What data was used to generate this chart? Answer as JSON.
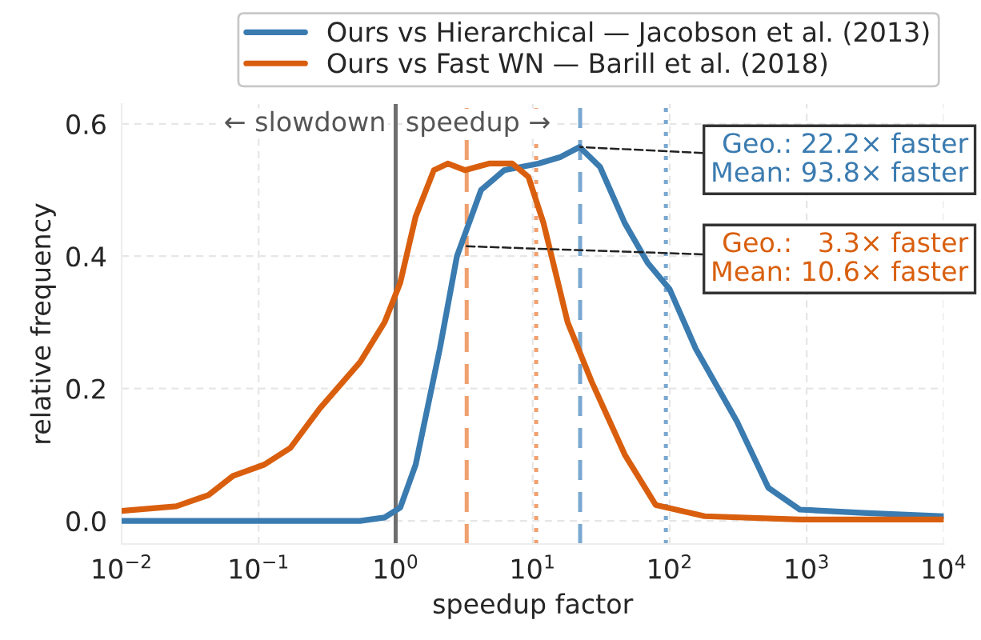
{
  "chart_data": {
    "type": "line",
    "xlabel": "speedup factor",
    "ylabel": "relative frequency",
    "log": "x",
    "grid": true,
    "legend": "top",
    "line_style": "solid",
    "marker": "none",
    "xlim": [
      0.01,
      10000
    ],
    "ylim": [
      -0.035,
      0.63
    ],
    "xticks": [
      {
        "value": 0.01,
        "label": "10$^{−2}$"
      },
      {
        "value": 0.1,
        "label": "10$^{−1}$"
      },
      {
        "value": 1,
        "label": "10$^{0}$"
      },
      {
        "value": 10,
        "label": "10$^{1}$"
      },
      {
        "value": 100,
        "label": "10$^{2}$"
      },
      {
        "value": 1000,
        "label": "10$^{3}$"
      },
      {
        "value": 10000,
        "label": "10$^{4}$"
      }
    ],
    "yticks": [
      {
        "value": 0,
        "label": "0.0"
      },
      0.2,
      0.4,
      0.6
    ],
    "series": [
      {
        "name": "Ours vs Hierarchical — Jacobson et al. (2013)",
        "color": "#3a7bb0",
        "x": [
          0.01,
          0.55,
          0.83,
          1.08,
          1.4,
          2.1,
          2.8,
          4.2,
          6.2,
          11,
          16,
          22,
          31,
          47,
          69,
          100,
          155,
          310,
          525,
          890,
          2600,
          10000
        ],
        "values": [
          0,
          0,
          0.005,
          0.02,
          0.085,
          0.26,
          0.4,
          0.5,
          0.53,
          0.54,
          0.55,
          0.565,
          0.535,
          0.45,
          0.39,
          0.35,
          0.26,
          0.15,
          0.05,
          0.017,
          0.012,
          0.007
        ]
      },
      {
        "name": "Ours vs Fast WN — Barill et al. (2018)",
        "color": "#d95f0e",
        "x": [
          0.01,
          0.025,
          0.043,
          0.065,
          0.11,
          0.17,
          0.28,
          0.55,
          0.83,
          1.08,
          1.4,
          1.9,
          2.4,
          3.2,
          4.8,
          7.1,
          9.3,
          12,
          18,
          27,
          47,
          79,
          180,
          890,
          10000
        ],
        "values": [
          0.015,
          0.022,
          0.039,
          0.068,
          0.085,
          0.11,
          0.17,
          0.24,
          0.3,
          0.36,
          0.46,
          0.53,
          0.54,
          0.53,
          0.54,
          0.54,
          0.52,
          0.45,
          0.3,
          0.21,
          0.1,
          0.024,
          0.007,
          0.002,
          0.002
        ]
      }
    ],
    "ref_lines": [
      {
        "axis": "x",
        "value": 1,
        "color": "#6e6e6e",
        "line_style": "solid"
      },
      {
        "axis": "x",
        "value": 22.2,
        "color": "#7aa8d0",
        "line_style": "dashed"
      },
      {
        "axis": "x",
        "value": 93.8,
        "color": "#7aa8d0",
        "line_style": "dotted"
      },
      {
        "axis": "x",
        "value": 3.3,
        "color": "#f0a070",
        "line_style": "dashed"
      },
      {
        "axis": "x",
        "value": 10.6,
        "color": "#f0a070",
        "line_style": "dotted"
      }
    ],
    "annotations": [
      "← slowdown",
      "speedup →",
      {
        "text": "Geo.: 22.2× faster\nMean: 93.8× faster",
        "x": 22.2,
        "y": 0.565
      },
      {
        "text": "Geo.:   3.3× faster\nMean: 10.6× faster",
        "x": 3.3,
        "y": 0.415
      }
    ]
  }
}
